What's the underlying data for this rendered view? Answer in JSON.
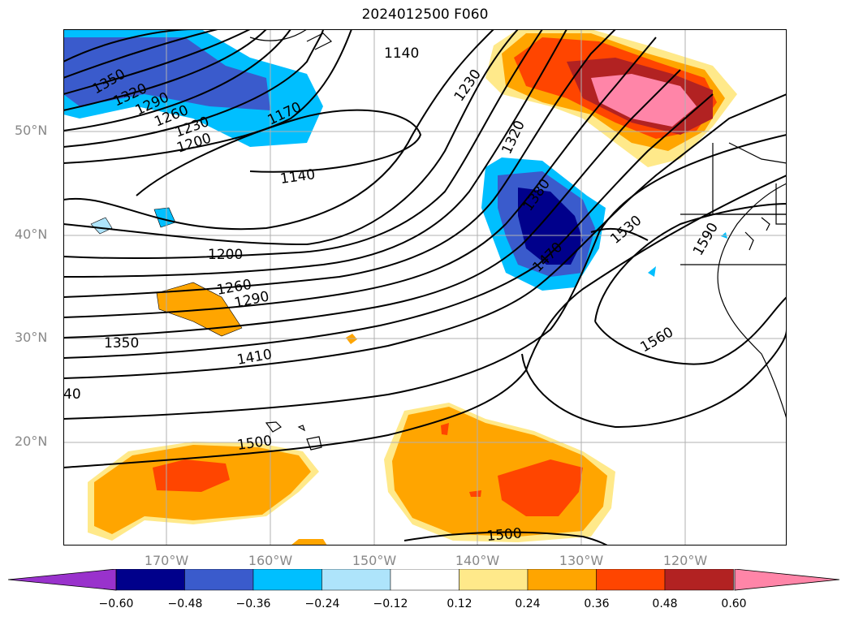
{
  "title": "2024012500 F060",
  "map": {
    "lat_labels": [
      {
        "text": "50°N",
        "lat": 50
      },
      {
        "text": "40°N",
        "lat": 40
      },
      {
        "text": "30°N",
        "lat": 30
      },
      {
        "text": "20°N",
        "lat": 20
      }
    ],
    "lon_labels": [
      {
        "text": "170°W",
        "lon": -170
      },
      {
        "text": "160°W",
        "lon": -160
      },
      {
        "text": "150°W",
        "lon": -150
      },
      {
        "text": "140°W",
        "lon": -140
      },
      {
        "text": "130°W",
        "lon": -130
      },
      {
        "text": "120°W",
        "lon": -120
      }
    ],
    "contour_labels": [
      "1350",
      "1320",
      "1290",
      "1260",
      "1230",
      "1200",
      "1170",
      "1140",
      "1140",
      "1230",
      "1320",
      "1380",
      "1470",
      "1530",
      "1590",
      "1200",
      "1260",
      "1290",
      "1350",
      "1410",
      "1560",
      "40",
      "1500",
      "1500"
    ],
    "colors": {
      "land_outline": "#000000",
      "grid": "#b0b0b0"
    }
  },
  "colorbar": {
    "colors": [
      "#9932cc",
      "#00008b",
      "#3a5bcc",
      "#00bfff",
      "#aee4fb",
      "#ffffff",
      "#ffe98a",
      "#ffa500",
      "#ff4500",
      "#b22222",
      "#ff85a8"
    ],
    "ticks": [
      "−0.60",
      "−0.48",
      "−0.36",
      "−0.24",
      "−0.12",
      "0.12",
      "0.24",
      "0.36",
      "0.48",
      "0.60"
    ]
  }
}
